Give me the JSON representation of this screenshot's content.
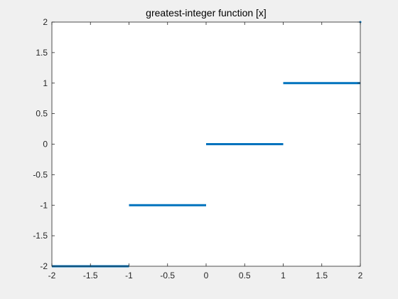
{
  "chart_data": {
    "type": "line",
    "title": "greatest-integer function [x]",
    "xlabel": "",
    "ylabel": "",
    "xlim": [
      -2,
      2
    ],
    "ylim": [
      -2,
      2
    ],
    "xticks": [
      -2,
      -1.5,
      -1,
      -0.5,
      0,
      0.5,
      1,
      1.5,
      2
    ],
    "xtick_labels": [
      "-2",
      "-1.5",
      "-1",
      "-0.5",
      "0",
      "0.5",
      "1",
      "1.5",
      "2"
    ],
    "yticks": [
      -2,
      -1.5,
      -1,
      -0.5,
      0,
      0.5,
      1,
      1.5,
      2
    ],
    "ytick_labels": [
      "-2",
      "-1.5",
      "-1",
      "-0.5",
      "0",
      "0.5",
      "1",
      "1.5",
      "2"
    ],
    "grid": false,
    "series": [
      {
        "color": "#0072bd",
        "segments": [
          {
            "x": [
              -2,
              -1
            ],
            "y": [
              -2,
              -2
            ]
          },
          {
            "x": [
              -1,
              0
            ],
            "y": [
              -1,
              -1
            ]
          },
          {
            "x": [
              0,
              1
            ],
            "y": [
              0,
              0
            ]
          },
          {
            "x": [
              1,
              2
            ],
            "y": [
              1,
              1
            ]
          },
          {
            "x": [
              2,
              2
            ],
            "y": [
              2,
              2
            ]
          }
        ]
      }
    ]
  }
}
